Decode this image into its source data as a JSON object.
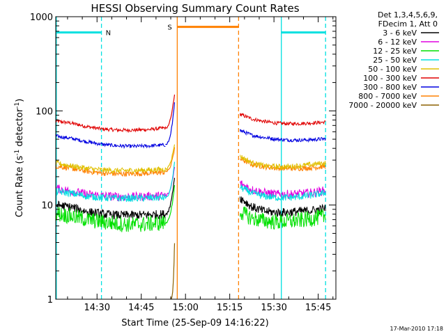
{
  "chart_data": {
    "type": "line",
    "title": "HESSI Observing Summary Count Rates",
    "xlabel": "Start Time (25-Sep-09 14:16:22)",
    "ylabel_parts": [
      "Count Rate (s",
      "-1",
      " detector",
      "-1",
      ")"
    ],
    "yscale": "log",
    "ylim": [
      1,
      1000
    ],
    "xlim_minutes": [
      0,
      95
    ],
    "x_ticks": [
      {
        "minute": 14.0,
        "label": "14:30"
      },
      {
        "minute": 29.0,
        "label": "14:45"
      },
      {
        "minute": 44.0,
        "label": "15:00"
      },
      {
        "minute": 59.0,
        "label": "15:15"
      },
      {
        "minute": 74.0,
        "label": "15:30"
      },
      {
        "minute": 89.0,
        "label": "15:45"
      }
    ],
    "y_ticks": [
      {
        "value": 1,
        "label": "1"
      },
      {
        "value": 10,
        "label": "10"
      },
      {
        "value": 100,
        "label": "100"
      },
      {
        "value": 1000,
        "label": "1000"
      }
    ],
    "legend": {
      "placement": "top-right",
      "header": [
        "Det 1,3,4,5,6,9,",
        "FDecim 1, Att 0"
      ],
      "entries": [
        {
          "label": "3 - 6 keV",
          "color": "#000000"
        },
        {
          "label": "6 - 12 keV",
          "color": "#e000e0"
        },
        {
          "label": "12 - 25 keV",
          "color": "#00e000"
        },
        {
          "label": "25 - 50 keV",
          "color": "#00e0e0"
        },
        {
          "label": "50 - 100 keV",
          "color": "#e0c000"
        },
        {
          "label": "100 - 300 keV",
          "color": "#e00000"
        },
        {
          "label": "300 - 800 keV",
          "color": "#0000e0"
        },
        {
          "label": "800 - 7000 keV",
          "color": "#ff8000"
        },
        {
          "label": "7000 - 20000 keV",
          "color": "#8b6000"
        }
      ]
    },
    "series": [
      {
        "name": "3 - 6 keV",
        "color": "#000000",
        "noise": 0.05,
        "segments": [
          {
            "start": 0,
            "end": 37.2,
            "values": [
              10,
              9.5,
              8.5,
              8,
              7.8,
              7.8,
              7.9,
              8
            ]
          },
          {
            "start": 62.5,
            "end": 91.5,
            "values": [
              12,
              9.5,
              8.6,
              8.3,
              8.4,
              8.6,
              8.8,
              9.2
            ]
          }
        ],
        "tail": {
          "start": 37.2,
          "end": 40.3,
          "v0": 8,
          "v1": 20
        }
      },
      {
        "name": "6 - 12 keV",
        "color": "#e000e0",
        "noise": 0.05,
        "segments": [
          {
            "start": 0,
            "end": 37.2,
            "values": [
              15,
              14,
              13,
              12.5,
              12.3,
              12.2,
              12.4,
              12.6
            ]
          },
          {
            "start": 62.5,
            "end": 91.5,
            "values": [
              17,
              14.5,
              13.5,
              13,
              13,
              13.2,
              13.6,
              14.3
            ]
          }
        ],
        "tail": {
          "start": 37.2,
          "end": 40.3,
          "v0": 12.6,
          "v1": 25
        }
      },
      {
        "name": "12 - 25 keV",
        "color": "#00e000",
        "noise": 0.09,
        "segments": [
          {
            "start": 0,
            "end": 37.2,
            "values": [
              8.2,
              7.6,
              7,
              6.6,
              6.3,
              6.2,
              6.3,
              6.5
            ]
          },
          {
            "start": 62.5,
            "end": 91.5,
            "values": [
              8.5,
              7.2,
              6.8,
              6.6,
              6.7,
              6.9,
              7.2,
              7.6
            ]
          }
        ],
        "tail": {
          "start": 37.2,
          "end": 40.3,
          "v0": 6.5,
          "v1": 16
        }
      },
      {
        "name": "25 - 50 keV",
        "color": "#00e0e0",
        "noise": 0.04,
        "segments": [
          {
            "start": 0,
            "end": 37.2,
            "values": [
              14,
              13.3,
              12.4,
              12,
              11.8,
              11.8,
              11.9,
              12
            ]
          },
          {
            "start": 62.5,
            "end": 91.5,
            "values": [
              15.5,
              13.3,
              12.4,
              12,
              12,
              12.3,
              12.8,
              13.5
            ]
          }
        ],
        "tail": {
          "start": 37.2,
          "end": 40.3,
          "v0": 12,
          "v1": 28
        }
      },
      {
        "name": "50 - 100 keV",
        "color": "#e0c000",
        "noise": 0.03,
        "segments": [
          {
            "start": 0,
            "end": 37.2,
            "values": [
              28,
              26,
              24.5,
              23.5,
              23.2,
              23.3,
              23.6,
              24
            ]
          },
          {
            "start": 62.5,
            "end": 91.5,
            "values": [
              33,
              28,
              26,
              25.5,
              25.6,
              26.2,
              27,
              28
            ]
          }
        ],
        "tail": {
          "start": 37.2,
          "end": 40.3,
          "v0": 24,
          "v1": 45
        }
      },
      {
        "name": "100 - 300 keV",
        "color": "#e00000",
        "noise": 0.02,
        "segments": [
          {
            "start": 0,
            "end": 37.2,
            "values": [
              78,
              74,
              68,
              64,
              62.5,
              62.5,
              63.5,
              66
            ]
          },
          {
            "start": 62.5,
            "end": 91.5,
            "values": [
              92,
              82,
              77,
              74,
              73,
              73.5,
              74.5,
              76
            ]
          }
        ],
        "tail": {
          "start": 37.2,
          "end": 40.3,
          "v0": 66,
          "v1": 150
        }
      },
      {
        "name": "300 - 800 keV",
        "color": "#0000e0",
        "noise": 0.02,
        "segments": [
          {
            "start": 0,
            "end": 37.2,
            "values": [
              54,
              51,
              47,
              44,
              42.5,
              42,
              42.5,
              43.5
            ]
          },
          {
            "start": 62.5,
            "end": 91.5,
            "values": [
              62,
              55,
              52,
              50,
              49,
              49,
              49.5,
              50.5
            ]
          }
        ],
        "tail": {
          "start": 37.2,
          "end": 40.3,
          "v0": 43.5,
          "v1": 120
        }
      },
      {
        "name": "800 - 7000 keV",
        "color": "#ff8000",
        "noise": 0.03,
        "segments": [
          {
            "start": 0,
            "end": 37.2,
            "values": [
              26,
              24.5,
              22.8,
              21.8,
              21.4,
              21.5,
              21.8,
              22.3
            ]
          },
          {
            "start": 62.5,
            "end": 91.5,
            "values": [
              31,
              27,
              25.5,
              24.7,
              24.5,
              24.6,
              25,
              25.8
            ]
          }
        ],
        "tail": {
          "start": 37.2,
          "end": 40.3,
          "v0": 22.3,
          "v1": 40
        }
      },
      {
        "name": "7000 - 20000 keV",
        "color": "#8b6000",
        "noise": 0.0,
        "segments": [],
        "tail": {
          "start": 39.2,
          "end": 40.3,
          "v0": 1,
          "v1": 4
        }
      }
    ],
    "annotations": [
      {
        "kind": "flag",
        "label": "N",
        "color": "#00e0e0",
        "start": 0,
        "end": 15.5,
        "level": 680
      },
      {
        "kind": "flag",
        "label": "S",
        "color": "#ff8000",
        "start": 41.2,
        "end": 62.0,
        "level": 780
      },
      {
        "kind": "flag",
        "label": "",
        "color": "#00e0e0",
        "start": 76.5,
        "end": 91.5,
        "level": 680
      }
    ],
    "verticals": [
      {
        "minute": 0.2,
        "color": "#00e0e0",
        "style": "solid"
      },
      {
        "minute": 15.5,
        "color": "#00e0e0",
        "style": "dashed"
      },
      {
        "minute": 41.2,
        "color": "#ff8000",
        "style": "solid"
      },
      {
        "minute": 62.0,
        "color": "#ff8000",
        "style": "dashed"
      },
      {
        "minute": 76.5,
        "color": "#00e0e0",
        "style": "solid"
      },
      {
        "minute": 91.5,
        "color": "#00e0e0",
        "style": "dashed"
      }
    ]
  },
  "footer": {
    "timestamp": "17-Mar-2010 17:18"
  }
}
